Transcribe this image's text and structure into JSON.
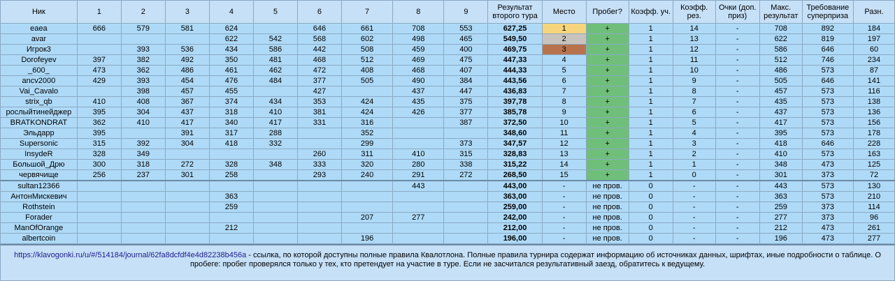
{
  "headers": [
    "Ник",
    "1",
    "2",
    "3",
    "4",
    "5",
    "6",
    "7",
    "8",
    "9",
    "Результат второго тура",
    "Место",
    "Пробег?",
    "Коэфф. уч.",
    "Коэфф. рез.",
    "Очки (доп. приз)",
    "Макс. результат",
    "Требование суперприза",
    "Разн."
  ],
  "colors": {
    "gold": "#f6d57d",
    "silver": "#c9c3bd",
    "bronze": "#b8734d",
    "run_yes": "#6fbf7a"
  },
  "rows": [
    {
      "nick": "eaea",
      "r": [
        "666",
        "579",
        "581",
        "624",
        "",
        "646",
        "661",
        "708",
        "553"
      ],
      "result": "627,25",
      "place": "1",
      "run": "+",
      "k1": "1",
      "k2": "14",
      "pts": "-",
      "max": "708",
      "req": "892",
      "diff": "184",
      "medal": "gold"
    },
    {
      "nick": "avar",
      "r": [
        "",
        "",
        "",
        "622",
        "542",
        "568",
        "602",
        "498",
        "465"
      ],
      "result": "549,50",
      "place": "2",
      "run": "+",
      "k1": "1",
      "k2": "13",
      "pts": "-",
      "max": "622",
      "req": "819",
      "diff": "197",
      "medal": "silver"
    },
    {
      "nick": "Игрок3",
      "r": [
        "",
        "393",
        "536",
        "434",
        "586",
        "442",
        "508",
        "459",
        "400"
      ],
      "result": "469,75",
      "place": "3",
      "run": "+",
      "k1": "1",
      "k2": "12",
      "pts": "-",
      "max": "586",
      "req": "646",
      "diff": "60",
      "medal": "bronze"
    },
    {
      "nick": "Dorofeyev",
      "r": [
        "397",
        "382",
        "492",
        "350",
        "481",
        "468",
        "512",
        "469",
        "475"
      ],
      "result": "447,33",
      "place": "4",
      "run": "+",
      "k1": "1",
      "k2": "11",
      "pts": "-",
      "max": "512",
      "req": "746",
      "diff": "234",
      "medal": ""
    },
    {
      "nick": "_600_",
      "r": [
        "473",
        "362",
        "486",
        "461",
        "462",
        "472",
        "408",
        "468",
        "407"
      ],
      "result": "444,33",
      "place": "5",
      "run": "+",
      "k1": "1",
      "k2": "10",
      "pts": "-",
      "max": "486",
      "req": "573",
      "diff": "87",
      "medal": ""
    },
    {
      "nick": "ancv2000",
      "r": [
        "429",
        "393",
        "454",
        "476",
        "484",
        "377",
        "505",
        "490",
        "384"
      ],
      "result": "443,56",
      "place": "6",
      "run": "+",
      "k1": "1",
      "k2": "9",
      "pts": "-",
      "max": "505",
      "req": "646",
      "diff": "141",
      "medal": ""
    },
    {
      "nick": "Vai_Cavalo",
      "r": [
        "",
        "398",
        "457",
        "455",
        "",
        "427",
        "",
        "437",
        "447"
      ],
      "result": "436,83",
      "place": "7",
      "run": "+",
      "k1": "1",
      "k2": "8",
      "pts": "-",
      "max": "457",
      "req": "573",
      "diff": "116",
      "medal": ""
    },
    {
      "nick": "strix_qb",
      "r": [
        "410",
        "408",
        "367",
        "374",
        "434",
        "353",
        "424",
        "435",
        "375"
      ],
      "result": "397,78",
      "place": "8",
      "run": "+",
      "k1": "1",
      "k2": "7",
      "pts": "-",
      "max": "435",
      "req": "573",
      "diff": "138",
      "medal": ""
    },
    {
      "nick": "рослыйтинейджер",
      "r": [
        "395",
        "304",
        "437",
        "318",
        "410",
        "381",
        "424",
        "426",
        "377"
      ],
      "result": "385,78",
      "place": "9",
      "run": "+",
      "k1": "1",
      "k2": "6",
      "pts": "-",
      "max": "437",
      "req": "573",
      "diff": "136",
      "medal": ""
    },
    {
      "nick": "BRATKONDRAT",
      "r": [
        "362",
        "410",
        "417",
        "340",
        "417",
        "331",
        "316",
        "",
        "387"
      ],
      "result": "372,50",
      "place": "10",
      "run": "+",
      "k1": "1",
      "k2": "5",
      "pts": "-",
      "max": "417",
      "req": "573",
      "diff": "156",
      "medal": ""
    },
    {
      "nick": "Эльдарр",
      "r": [
        "395",
        "",
        "391",
        "317",
        "288",
        "",
        "352",
        "",
        ""
      ],
      "result": "348,60",
      "place": "11",
      "run": "+",
      "k1": "1",
      "k2": "4",
      "pts": "-",
      "max": "395",
      "req": "573",
      "diff": "178",
      "medal": ""
    },
    {
      "nick": "Supersonic",
      "r": [
        "315",
        "392",
        "304",
        "418",
        "332",
        "",
        "299",
        "",
        "373"
      ],
      "result": "347,57",
      "place": "12",
      "run": "+",
      "k1": "1",
      "k2": "3",
      "pts": "-",
      "max": "418",
      "req": "646",
      "diff": "228",
      "medal": ""
    },
    {
      "nick": "InsydeR",
      "r": [
        "328",
        "349",
        "",
        "",
        "",
        "260",
        "311",
        "410",
        "315"
      ],
      "result": "328,83",
      "place": "13",
      "run": "+",
      "k1": "1",
      "k2": "2",
      "pts": "-",
      "max": "410",
      "req": "573",
      "diff": "163",
      "medal": ""
    },
    {
      "nick": "Большой_Дрю",
      "r": [
        "300",
        "318",
        "272",
        "328",
        "348",
        "333",
        "320",
        "280",
        "338"
      ],
      "result": "315,22",
      "place": "14",
      "run": "+",
      "k1": "1",
      "k2": "1",
      "pts": "-",
      "max": "348",
      "req": "473",
      "diff": "125",
      "medal": ""
    },
    {
      "nick": "червячище",
      "r": [
        "256",
        "237",
        "301",
        "258",
        "",
        "293",
        "240",
        "291",
        "272"
      ],
      "result": "268,50",
      "place": "15",
      "run": "+",
      "k1": "1",
      "k2": "0",
      "pts": "-",
      "max": "301",
      "req": "373",
      "diff": "72",
      "medal": ""
    },
    {
      "nick": "sultan12366",
      "r": [
        "",
        "",
        "",
        "",
        "",
        "",
        "",
        "443",
        ""
      ],
      "result": "443,00",
      "place": "-",
      "run": "не пров.",
      "k1": "0",
      "k2": "-",
      "pts": "-",
      "max": "443",
      "req": "573",
      "diff": "130",
      "medal": "",
      "sep": true
    },
    {
      "nick": "АнтонМискевич",
      "r": [
        "",
        "",
        "",
        "363",
        "",
        "",
        "",
        "",
        ""
      ],
      "result": "363,00",
      "place": "-",
      "run": "не пров.",
      "k1": "0",
      "k2": "-",
      "pts": "-",
      "max": "363",
      "req": "573",
      "diff": "210",
      "medal": ""
    },
    {
      "nick": "Rothstein",
      "r": [
        "",
        "",
        "",
        "259",
        "",
        "",
        "",
        "",
        ""
      ],
      "result": "259,00",
      "place": "-",
      "run": "не пров.",
      "k1": "0",
      "k2": "-",
      "pts": "-",
      "max": "259",
      "req": "373",
      "diff": "114",
      "medal": ""
    },
    {
      "nick": "Forader",
      "r": [
        "",
        "",
        "",
        "",
        "",
        "",
        "207",
        "277",
        ""
      ],
      "result": "242,00",
      "place": "-",
      "run": "не пров.",
      "k1": "0",
      "k2": "-",
      "pts": "-",
      "max": "277",
      "req": "373",
      "diff": "96",
      "medal": ""
    },
    {
      "nick": "ManOfOrange",
      "r": [
        "",
        "",
        "",
        "212",
        "",
        "",
        "",
        "",
        ""
      ],
      "result": "212,00",
      "place": "-",
      "run": "не пров.",
      "k1": "0",
      "k2": "-",
      "pts": "-",
      "max": "212",
      "req": "473",
      "diff": "261",
      "medal": ""
    },
    {
      "nick": "albertcoin",
      "r": [
        "",
        "",
        "",
        "",
        "",
        "",
        "196",
        "",
        ""
      ],
      "result": "196,00",
      "place": "-",
      "run": "не пров.",
      "k1": "0",
      "k2": "-",
      "pts": "-",
      "max": "196",
      "req": "473",
      "diff": "277",
      "medal": ""
    }
  ],
  "footer": {
    "link": "https://klavogonki.ru/u/#/514184/journal/62fa8dcfdf4e4d82238b456a",
    "text": " - ссылка, по которой доступны полные правила Квалотлона. Полные правила турнира содержат информацию об источниках данных, шрифтах, иные подробности о таблице. О пробеге: пробег проверялся только у тех, кто претендует на участие в туре. Если не засчитался результативный заезд, обратитесь к ведущему."
  }
}
